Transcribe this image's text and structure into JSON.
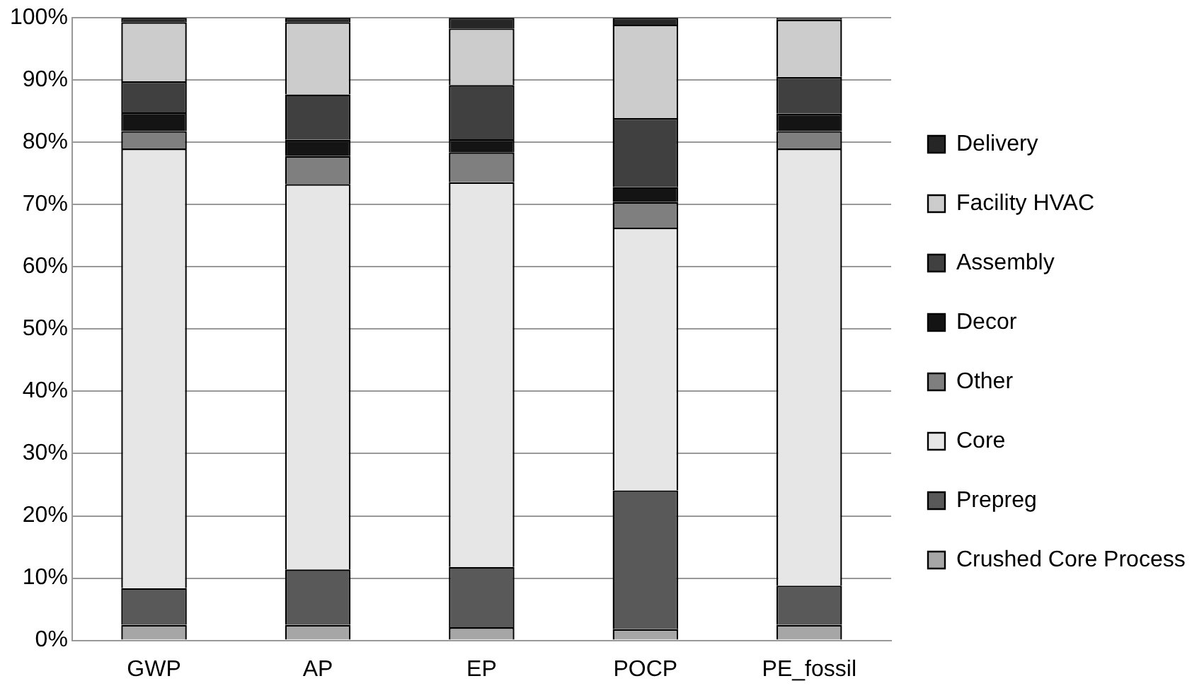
{
  "chart_data": {
    "type": "bar",
    "stacked": true,
    "categories": [
      "GWP",
      "AP",
      "EP",
      "POCP",
      "PE_fossil"
    ],
    "series": [
      {
        "name": "Crushed Core Process",
        "color": "#a6a6a6",
        "values": [
          2.5,
          2.5,
          2.1,
          1.8,
          2.5
        ]
      },
      {
        "name": "Prepreg",
        "color": "#595959",
        "values": [
          5.9,
          8.9,
          9.7,
          22.3,
          6.3
        ]
      },
      {
        "name": "Core",
        "color": "#e6e6e6",
        "values": [
          70.6,
          61.9,
          61.8,
          42.2,
          70.2
        ]
      },
      {
        "name": "Other",
        "color": "#7f7f7f",
        "values": [
          2.8,
          4.5,
          4.8,
          4.1,
          2.8
        ]
      },
      {
        "name": "Decor",
        "color": "#141414",
        "values": [
          3.0,
          2.6,
          2.1,
          2.4,
          2.8
        ]
      },
      {
        "name": "Assembly",
        "color": "#404040",
        "values": [
          5.0,
          7.3,
          8.7,
          11.1,
          5.9
        ]
      },
      {
        "name": "Facility HVAC",
        "color": "#cccccc",
        "values": [
          9.5,
          11.6,
          9.1,
          15.0,
          9.2
        ]
      },
      {
        "name": "Delivery",
        "color": "#262626",
        "values": [
          0.7,
          0.7,
          1.7,
          1.1,
          0.3
        ]
      }
    ],
    "ylim": [
      0,
      100
    ],
    "yticks": [
      {
        "value": 0,
        "label": "0%"
      },
      {
        "value": 10,
        "label": "10%"
      },
      {
        "value": 20,
        "label": "20%"
      },
      {
        "value": 30,
        "label": "30%"
      },
      {
        "value": 40,
        "label": "40%"
      },
      {
        "value": 50,
        "label": "50%"
      },
      {
        "value": 60,
        "label": "60%"
      },
      {
        "value": 70,
        "label": "70%"
      },
      {
        "value": 80,
        "label": "80%"
      },
      {
        "value": 90,
        "label": "90%"
      },
      {
        "value": 100,
        "label": "100%"
      }
    ],
    "grid": "y",
    "legend": "right"
  }
}
